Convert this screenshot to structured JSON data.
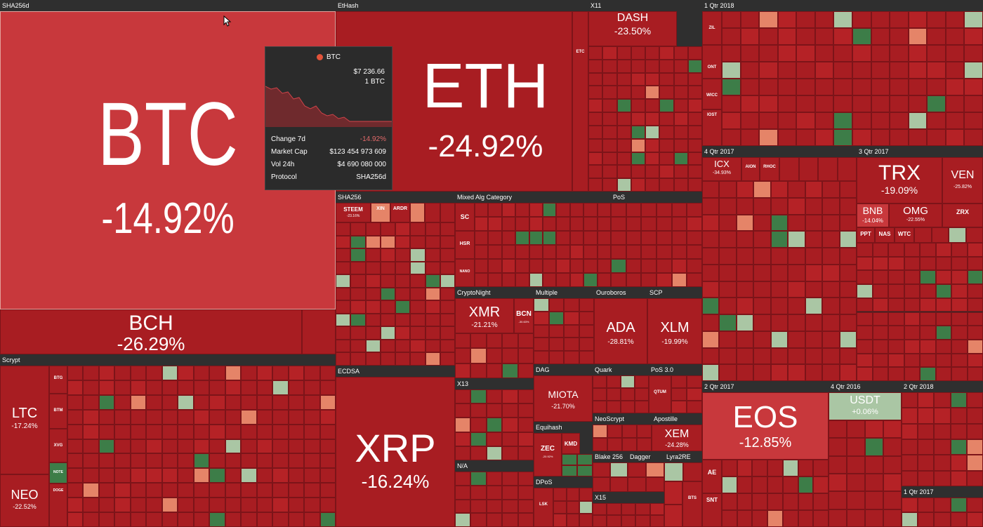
{
  "colors": {
    "deep_red": "#a81d22",
    "mid_red": "#b52226",
    "light_red": "#c8383c",
    "salmon": "#e58468",
    "green": "#3d7d48",
    "light_green": "#aac6a4",
    "dark_bg": "#2f2f2f"
  },
  "groups": {
    "sha256d": "SHA256d",
    "ethash": "EtHash",
    "x11": "X11",
    "q1_2018": "1 Qtr 2018",
    "q4_2017": "4 Qtr 2017",
    "q3_2017": "3 Qtr 2017",
    "sha256": "SHA256",
    "mixed": "Mixed Alg Category",
    "pos": "PoS",
    "scrypt": "Scrypt",
    "ecdsa": "ECDSA",
    "cryptonight": "CryptoNight",
    "multiple": "Multiple",
    "ouroboros": "Ouroboros",
    "scp": "SCP",
    "x13": "X13",
    "dag": "DAG",
    "quark": "Quark",
    "pos3": "PoS 3.0",
    "equihash": "Equihash",
    "neoscrypt": "NeoScrypt",
    "apostille": "Apostille",
    "na": "N/A",
    "blake256": "Blake 256",
    "dagger": "Dagger",
    "lyra2re": "Lyra2RE",
    "dpos": "DPoS",
    "x15": "X15",
    "q2_2017": "2 Qtr 2017",
    "q4_2016": "4 Qtr 2016",
    "q2_2018": "2 Qtr 2018",
    "q1_2017": "1 Qtr 2017"
  },
  "coins": {
    "btc": {
      "sym": "BTC",
      "pct": "-14.92%"
    },
    "bch": {
      "sym": "BCH",
      "pct": "-26.29%"
    },
    "eth": {
      "sym": "ETH",
      "pct": "-24.92%"
    },
    "etc": {
      "sym": "ETC"
    },
    "dash": {
      "sym": "DASH",
      "pct": "-23.50%"
    },
    "zil": {
      "sym": "ZIL"
    },
    "ont": {
      "sym": "ONT"
    },
    "wicc": {
      "sym": "WICC"
    },
    "iost": {
      "sym": "IOST"
    },
    "icx": {
      "sym": "ICX",
      "pct": "-34.93%"
    },
    "aion": {
      "sym": "AION"
    },
    "rhoc": {
      "sym": "RHOC"
    },
    "trx": {
      "sym": "TRX",
      "pct": "-19.09%"
    },
    "ven": {
      "sym": "VEN",
      "pct": "-25.82%"
    },
    "bnb": {
      "sym": "BNB",
      "pct": "-14.04%"
    },
    "omg": {
      "sym": "OMG",
      "pct": "-22.55%"
    },
    "zrx": {
      "sym": "ZRX"
    },
    "ppt": {
      "sym": "PPT"
    },
    "nas": {
      "sym": "NAS"
    },
    "wtc": {
      "sym": "WTC"
    },
    "steem": {
      "sym": "STEEM",
      "pct": "-23.16%"
    },
    "xin": {
      "sym": "XIN"
    },
    "ardr": {
      "sym": "ARDR"
    },
    "sc": {
      "sym": "SC"
    },
    "hsr": {
      "sym": "HSR"
    },
    "nano": {
      "sym": "NANO"
    },
    "ltc": {
      "sym": "LTC",
      "pct": "-17.24%"
    },
    "neo": {
      "sym": "NEO",
      "pct": "-22.52%"
    },
    "btg": {
      "sym": "BTG"
    },
    "btm": {
      "sym": "BTM"
    },
    "xvg": {
      "sym": "XVG"
    },
    "note": {
      "sym": "NOTE"
    },
    "doge": {
      "sym": "DOGE"
    },
    "xrp": {
      "sym": "XRP",
      "pct": "-16.24%"
    },
    "xmr": {
      "sym": "XMR",
      "pct": "-21.21%"
    },
    "bcn": {
      "sym": "BCN",
      "pct": "-30.63%"
    },
    "ada": {
      "sym": "ADA",
      "pct": "-28.81%"
    },
    "xlm": {
      "sym": "XLM",
      "pct": "-19.99%"
    },
    "miota": {
      "sym": "MIOTA",
      "pct": "-21.70%"
    },
    "qtum": {
      "sym": "QTUM"
    },
    "zec": {
      "sym": "ZEC",
      "pct": "-20.92%"
    },
    "kmd": {
      "sym": "KMD"
    },
    "xem": {
      "sym": "XEM",
      "pct": "-24.28%"
    },
    "lsk": {
      "sym": "LSK"
    },
    "bts": {
      "sym": "BTS"
    },
    "eos": {
      "sym": "EOS",
      "pct": "-12.85%"
    },
    "ae": {
      "sym": "AE"
    },
    "snt": {
      "sym": "SNT"
    },
    "usdt": {
      "sym": "USDT",
      "pct": "+0.06%"
    }
  },
  "tooltip": {
    "coin": "BTC",
    "price": "$7 236.66",
    "unit": "1 BTC",
    "rows": [
      {
        "k": "Change 7d",
        "v": "-14.92%"
      },
      {
        "k": "Market Cap",
        "v": "$123 454 973 609"
      },
      {
        "k": "Vol 24h",
        "v": "$4 690 080 000"
      },
      {
        "k": "Protocol",
        "v": "SHA256d"
      }
    ]
  }
}
